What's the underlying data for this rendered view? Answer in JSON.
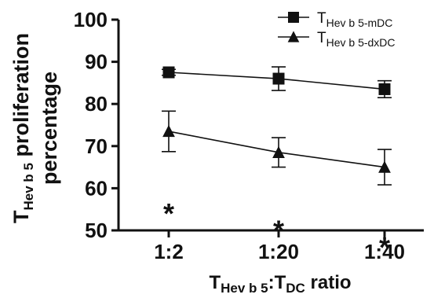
{
  "chart_data": {
    "type": "line",
    "categories": [
      "1:2",
      "1:20",
      "1:40"
    ],
    "ylim": [
      50,
      100
    ],
    "yticks": [
      50,
      60,
      70,
      80,
      90,
      100
    ],
    "xlabel": {
      "pre": "T",
      "sub1": "Hev b 5",
      "mid": ":T",
      "sub2": "DC",
      "post": "ratio"
    },
    "ylabel": {
      "line1_pre": "T",
      "line1_sub": "Hev b 5",
      "line1_post": "proliferation",
      "line2": "percentage"
    },
    "series": [
      {
        "name_main": "T",
        "name_sub": "Hev b 5-mDC",
        "marker": "square",
        "values": [
          87.5,
          86.0,
          83.5
        ],
        "errors": [
          0.7,
          2.8,
          2.0
        ]
      },
      {
        "name_main": "T",
        "name_sub": "Hev b 5-dxDC",
        "marker": "triangle",
        "values": [
          73.5,
          68.5,
          65.0
        ],
        "errors": [
          4.8,
          3.5,
          4.2
        ]
      }
    ],
    "annotations": [
      {
        "text": "*",
        "category": "1:2",
        "y": 55
      },
      {
        "text": "*",
        "category": "1:20",
        "y": 51
      },
      {
        "text": "*",
        "category": "1:40",
        "y": 47
      }
    ],
    "legend_position": "top-right"
  }
}
